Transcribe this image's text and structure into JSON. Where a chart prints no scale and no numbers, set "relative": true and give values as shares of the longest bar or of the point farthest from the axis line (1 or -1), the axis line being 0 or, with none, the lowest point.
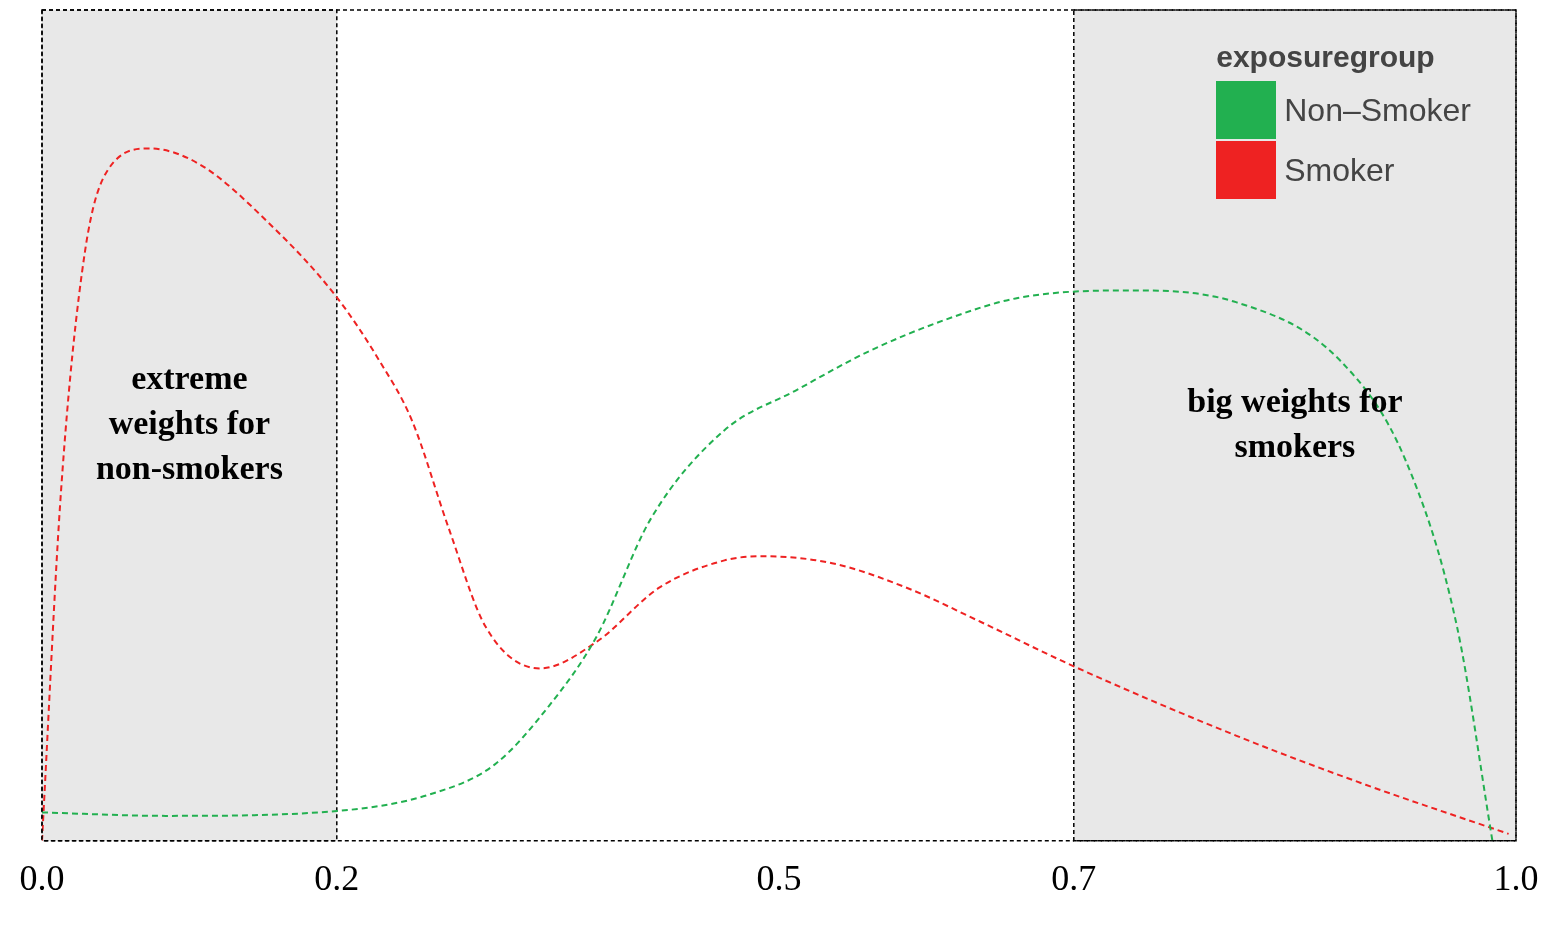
{
  "chart_data": {
    "type": "line",
    "relative": true,
    "line_style": "dashed",
    "marker": "none",
    "grid": false,
    "legend": "top right",
    "legend_title": "exposuregroup",
    "tick_labels": "x",
    "xlim": [
      0,
      1
    ],
    "xticks": [
      {
        "value": 0,
        "label": "0.0"
      },
      0.2,
      0.5,
      0.7,
      {
        "value": 1,
        "label": "1.0"
      }
    ],
    "bands": [
      {
        "axis": "x",
        "from": 0,
        "to": 0.2,
        "label": "extreme weights for non-smokers",
        "color": "#e8e8e8"
      },
      {
        "axis": "x",
        "from": 0.7,
        "to": 1.0,
        "label": "big weights for smokers",
        "color": "#e8e8e8"
      }
    ],
    "series": [
      {
        "name": "Non–Smoker",
        "color": "#22b050",
        "x": [
          0,
          0.084,
          0.2,
          0.263,
          0.307,
          0.344,
          0.376,
          0.413,
          0.463,
          0.511,
          0.561,
          0.612,
          0.662,
          0.735,
          0.81,
          0.881,
          0.925,
          0.96,
          0.984
        ],
        "values": [
          0.041,
          0.036,
          0.043,
          0.067,
          0.11,
          0.195,
          0.294,
          0.465,
          0.593,
          0.65,
          0.707,
          0.752,
          0.784,
          0.795,
          0.778,
          0.693,
          0.55,
          0.309,
          0
        ]
      },
      {
        "name": "Smoker",
        "color": "#ee2222",
        "x": [
          0,
          0.013,
          0.029,
          0.045,
          0.073,
          0.107,
          0.154,
          0.2,
          0.229,
          0.251,
          0.276,
          0.301,
          0.338,
          0.376,
          0.419,
          0.463,
          0.488,
          0.536,
          0.586,
          0.637,
          0.7,
          0.81,
          0.898,
          0.995
        ],
        "values": [
          0,
          0.508,
          0.849,
          0.97,
          1,
          0.977,
          0.892,
          0.785,
          0.693,
          0.607,
          0.451,
          0.309,
          0.249,
          0.287,
          0.366,
          0.405,
          0.411,
          0.401,
          0.366,
          0.316,
          0.252,
          0.152,
          0.081,
          0.01
        ]
      }
    ]
  }
}
